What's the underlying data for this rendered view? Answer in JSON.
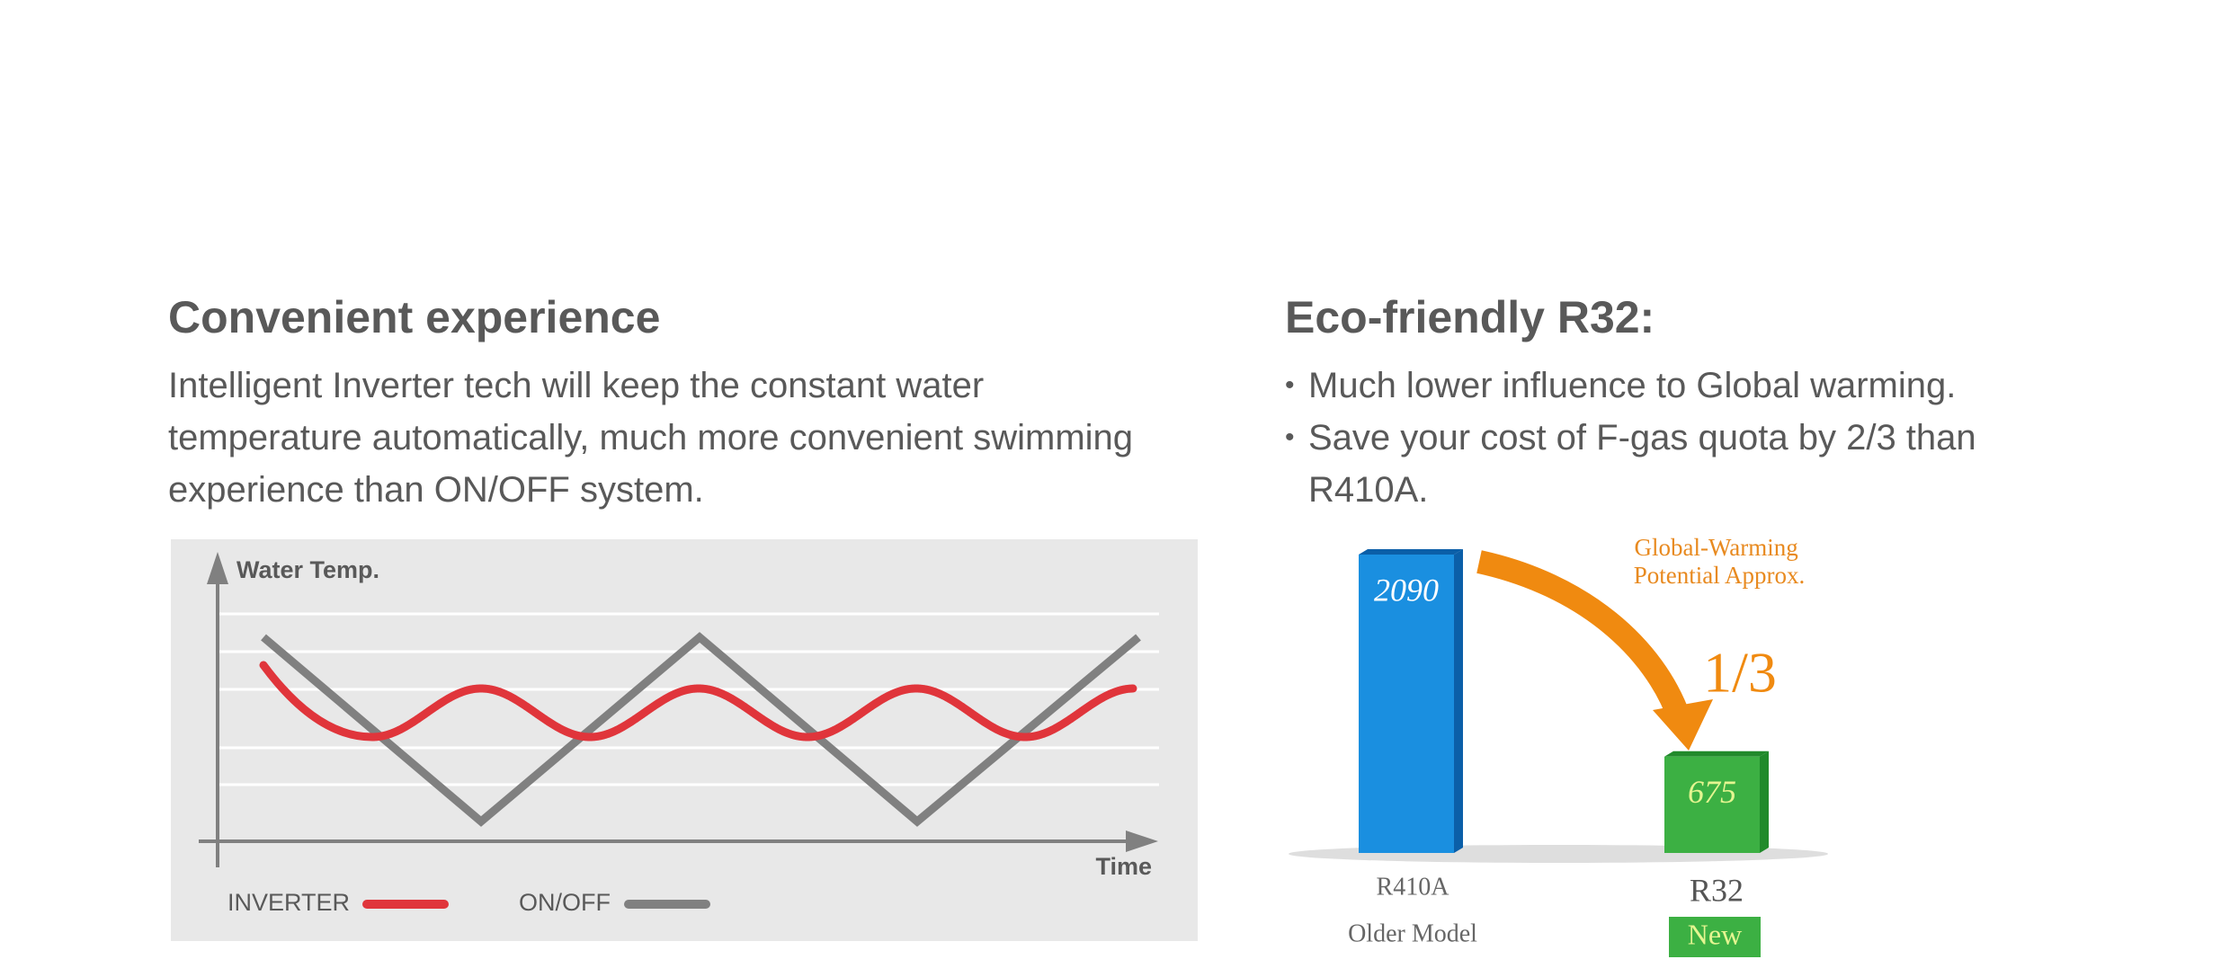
{
  "left": {
    "title": "Convenient experience",
    "body": "Intelligent Inverter tech will keep the constant water temperature automatically, much more convenient swimming experience than ON/OFF system.",
    "diagram": {
      "y_label": "Water Temp.",
      "x_label": "Time",
      "legend": [
        "INVERTER",
        "ON/OFF"
      ]
    }
  },
  "right": {
    "title": "Eco-friendly R32:",
    "bullets": [
      "Much lower influence to Global warming.",
      "Save your cost of F-gas quota by 2/3 than R410A."
    ],
    "chart": {
      "type": "bar",
      "annotation": "Global-Warming Potential Approx.",
      "ratio": "1/3",
      "categories": [
        "R410A",
        "R32"
      ],
      "sublabels": [
        "Older Model",
        "New"
      ],
      "values": [
        2090,
        675
      ],
      "colors": [
        "#1a8fe0",
        "#3cb043"
      ]
    }
  }
}
